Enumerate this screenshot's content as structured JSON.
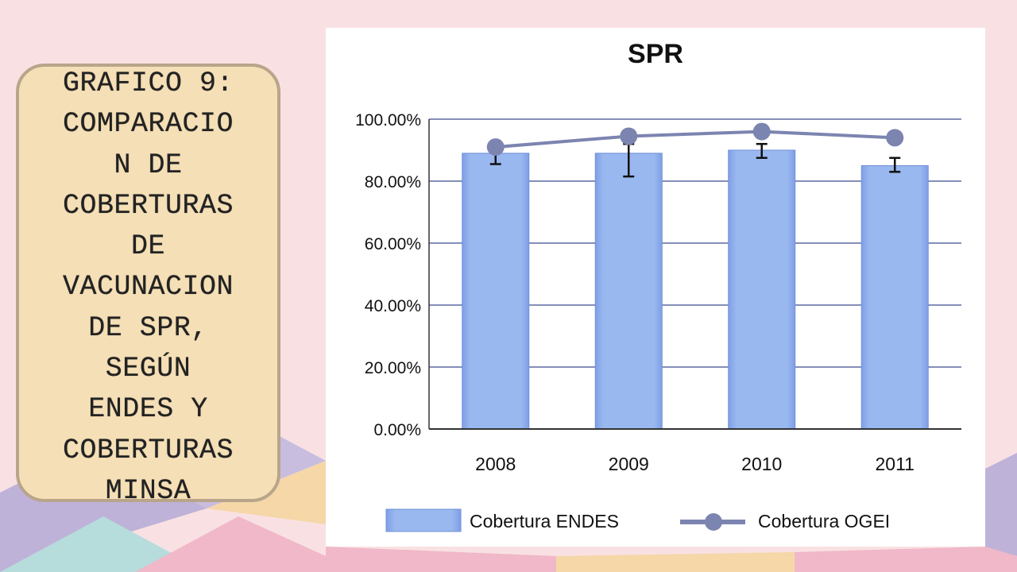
{
  "slide": {
    "title_lines": [
      "GRAFICO 9:",
      "COMPARACIO",
      "N DE",
      "COBERTURAS",
      "DE",
      "VACUNACION",
      "DE SPR,",
      "SEGÚN",
      "ENDES Y",
      "COBERTURAS",
      "MINSA"
    ]
  },
  "colors": {
    "background": "#f9e1e3",
    "title_box_fill": "#f5dfb6",
    "title_box_border": "#b8a58a",
    "bar_fill": "#99b8ef",
    "bar_edge": "#7090d8",
    "line": "#7c84b0",
    "gridline": "#5c6aa0"
  },
  "chart_data": {
    "type": "bar",
    "title": "SPR",
    "categories": [
      "2008",
      "2009",
      "2010",
      "2011"
    ],
    "ylim": [
      0,
      100
    ],
    "yticks": [
      0,
      20,
      40,
      60,
      80,
      100
    ],
    "ytick_labels": [
      "0.00%",
      "20.00%",
      "40.00%",
      "60.00%",
      "80.00%",
      "100.00%"
    ],
    "grid": true,
    "legend_position": "bottom",
    "series": [
      {
        "name": "Cobertura ENDES",
        "kind": "bar",
        "values": [
          89.0,
          89.0,
          90.0,
          85.0
        ],
        "error_low": [
          85.5,
          81.5,
          87.5,
          83.0
        ],
        "error_high": [
          91.5,
          92.0,
          92.0,
          87.5
        ]
      },
      {
        "name": "Cobertura OGEI",
        "kind": "line",
        "values": [
          91.0,
          94.5,
          96.0,
          94.0
        ]
      }
    ]
  }
}
